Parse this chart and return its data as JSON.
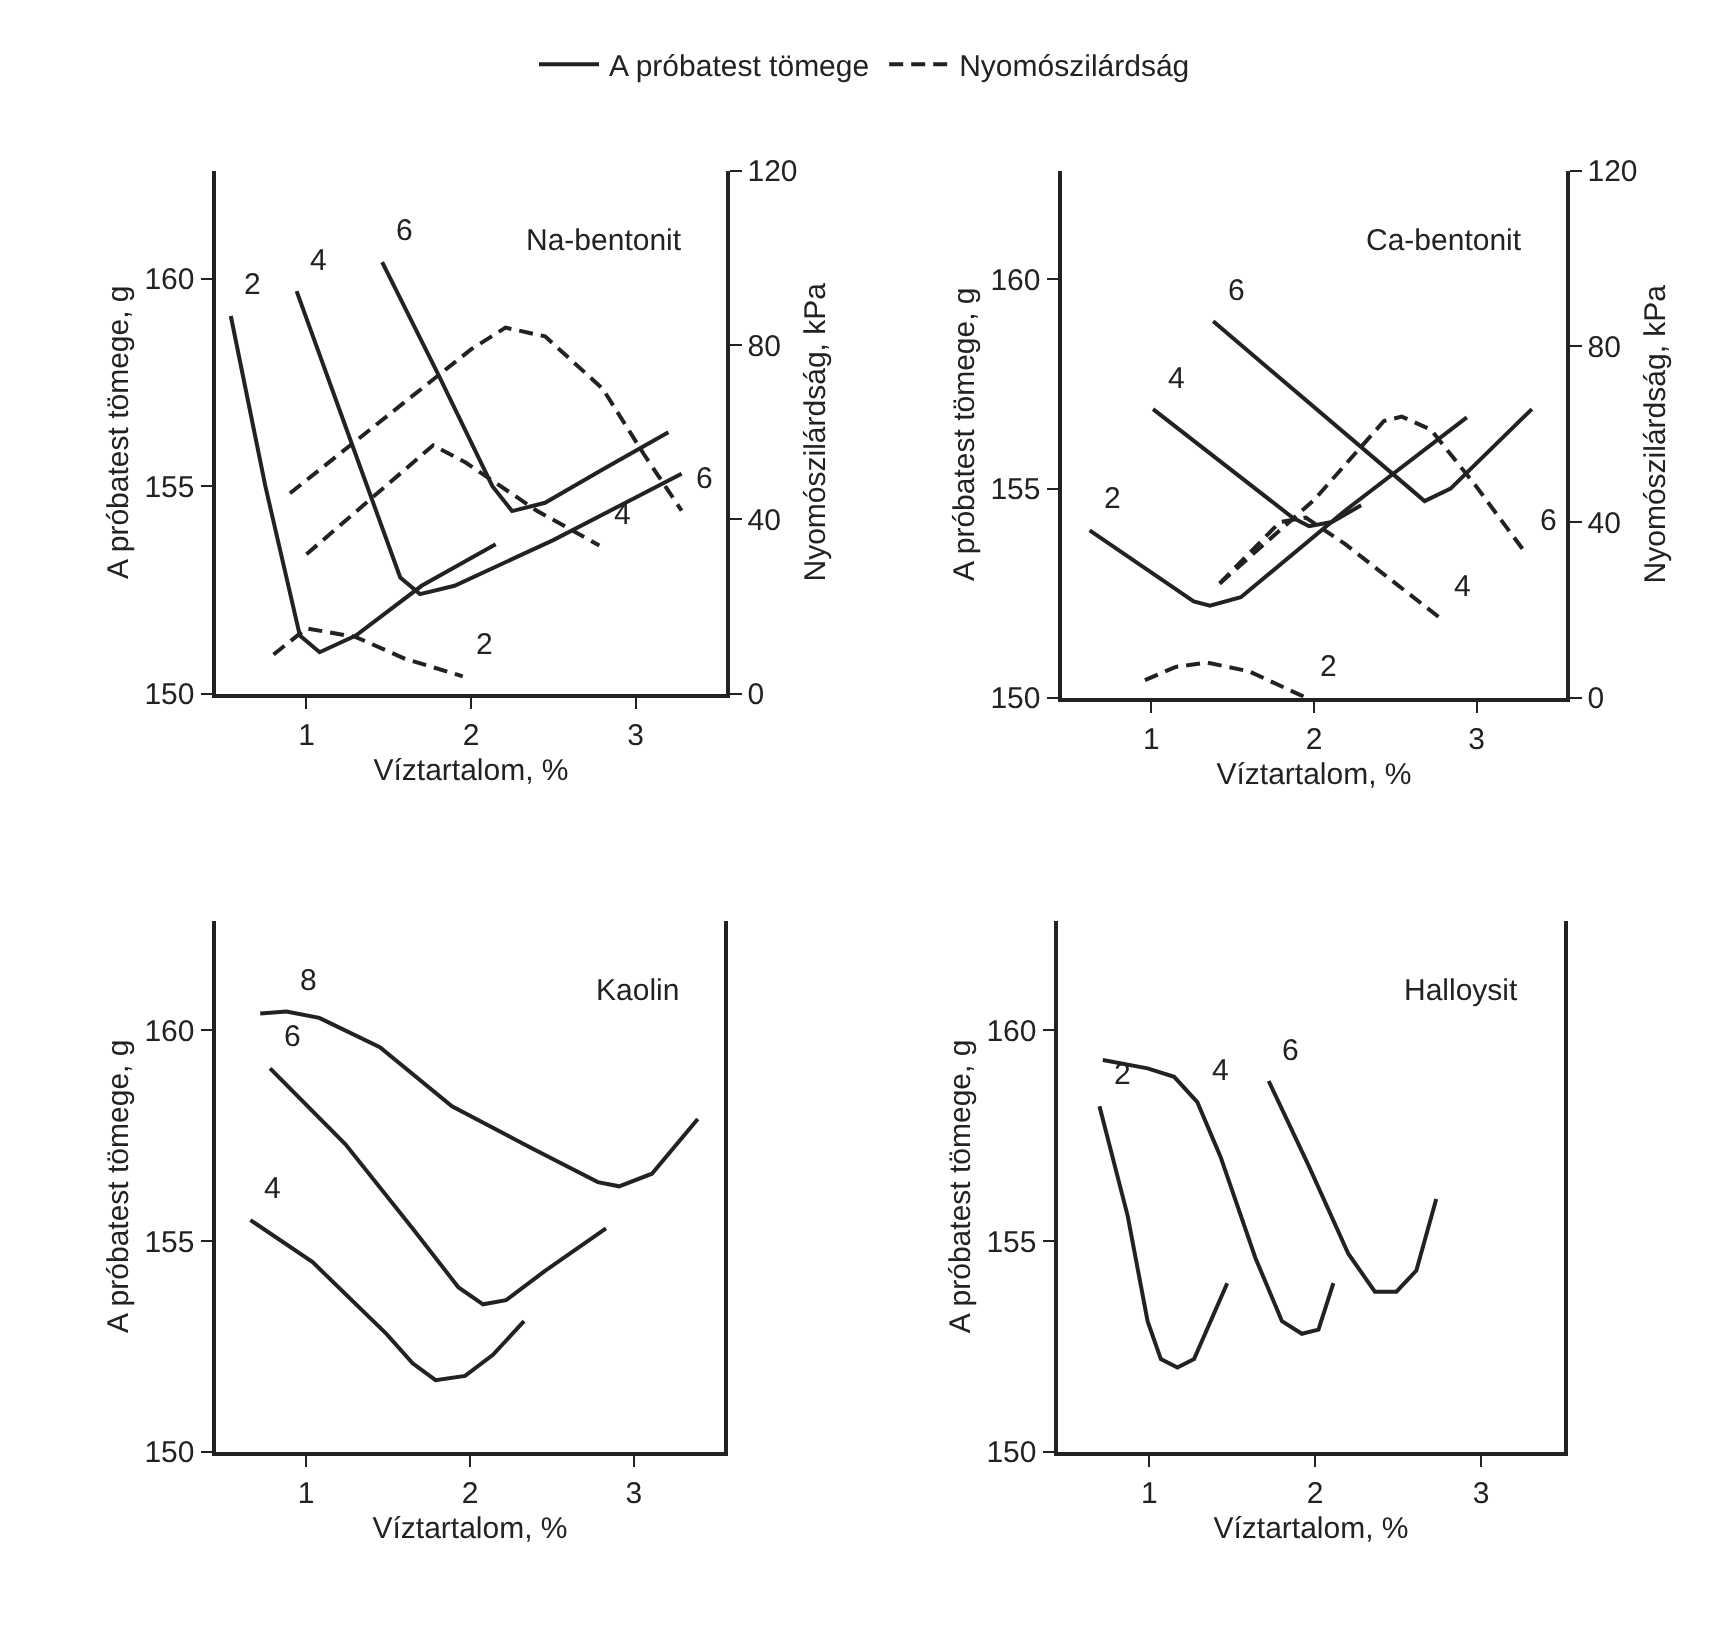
{
  "chart_data": [
    {
      "type": "line",
      "title": "Na-bentonit",
      "xlabel": "Víztartalom, %",
      "ylabel": "A próbatest tömege, g",
      "y2label": "Nyomószilárdság, kPa",
      "legend": "top",
      "xlim": [
        0.45,
        3.55
      ],
      "xticks": [
        1,
        2,
        3
      ],
      "ylim": [
        150,
        162.6
      ],
      "yticks": [
        150,
        155,
        160
      ],
      "y2lim": [
        0,
        120
      ],
      "y2ticks": [
        0,
        40,
        80,
        120
      ],
      "series": [
        {
          "name": "A próbatest tömege",
          "color": "#222222",
          "line_style": "solid",
          "x": [
            0.54,
            0.75,
            0.96,
            1.08,
            1.3,
            1.7,
            2.15
          ],
          "values": [
            159.1,
            155.0,
            151.4,
            151.0,
            151.4,
            152.6,
            153.6
          ]
        },
        {
          "color": "#222222",
          "line_style": "solid",
          "x": [
            0.94,
            1.25,
            1.57,
            1.69,
            1.9,
            2.5,
            3.28
          ],
          "values": [
            159.7,
            156.3,
            152.8,
            152.4,
            152.6,
            153.7,
            155.3
          ]
        },
        {
          "color": "#222222",
          "line_style": "solid",
          "x": [
            1.46,
            1.8,
            2.13,
            2.25,
            2.45,
            2.8,
            3.2
          ],
          "values": [
            160.4,
            157.7,
            155.0,
            154.4,
            154.6,
            155.4,
            156.3
          ]
        },
        {
          "name": "Nyomószilárdság",
          "color": "#222222",
          "line_style": "dashed",
          "axis": "y2",
          "x": [
            0.8,
            1.0,
            1.3,
            1.6,
            1.95
          ],
          "values": [
            9,
            15,
            13,
            8,
            4
          ]
        },
        {
          "color": "#222222",
          "line_style": "dashed",
          "axis": "y2",
          "x": [
            1.0,
            1.4,
            1.77,
            1.97,
            2.4,
            2.78
          ],
          "values": [
            32,
            45,
            57,
            53,
            42,
            34
          ]
        },
        {
          "color": "#222222",
          "line_style": "dashed",
          "axis": "y2",
          "x": [
            0.9,
            1.5,
            2.0,
            2.21,
            2.45,
            2.8,
            3.05,
            3.28
          ],
          "values": [
            46,
            64,
            79,
            84,
            82,
            70,
            55,
            42
          ]
        }
      ],
      "annotations": [
        {
          "text": "2",
          "x": 0.54,
          "y": 159.1
        },
        {
          "text": "4",
          "x": 0.94,
          "y": 159.7
        },
        {
          "text": "6",
          "x": 1.46,
          "y": 160.4
        },
        {
          "text": "2",
          "x": 1.95,
          "y": 150.42
        },
        {
          "text": "4",
          "x": 2.78,
          "y": 153.57
        },
        {
          "text": "6",
          "x": 3.28,
          "y": 154.41
        }
      ]
    },
    {
      "type": "line",
      "title": "Ca-bentonit",
      "xlabel": "Víztartalom, %",
      "ylabel": "A próbatest tömege, g",
      "y2label": "Nyomószilárdság, kPa",
      "xlim": [
        0.45,
        3.55
      ],
      "xticks": [
        1,
        2,
        3
      ],
      "ylim": [
        150,
        162.6
      ],
      "yticks": [
        150,
        155,
        160
      ],
      "y2lim": [
        0,
        120
      ],
      "y2ticks": [
        0,
        40,
        80,
        120
      ],
      "series": [
        {
          "color": "#222222",
          "line_style": "solid",
          "x": [
            0.62,
            1.26,
            1.36,
            1.55,
            2.2,
            2.94
          ],
          "values": [
            154.0,
            152.3,
            152.2,
            152.4,
            154.5,
            156.7
          ]
        },
        {
          "color": "#222222",
          "line_style": "solid",
          "x": [
            1.01,
            1.87,
            1.97,
            2.11,
            2.29
          ],
          "values": [
            156.9,
            154.3,
            154.1,
            154.2,
            154.6
          ]
        },
        {
          "color": "#222222",
          "line_style": "solid",
          "x": [
            1.38,
            2.56,
            2.68,
            2.84,
            3.34
          ],
          "values": [
            159.0,
            155.1,
            154.7,
            155.0,
            156.9
          ]
        },
        {
          "color": "#222222",
          "line_style": "dashed",
          "axis": "y2",
          "x": [
            0.96,
            1.15,
            1.34,
            1.6,
            1.95
          ],
          "values": [
            4,
            7,
            8,
            6,
            0
          ]
        },
        {
          "color": "#222222",
          "line_style": "dashed",
          "axis": "y2",
          "x": [
            1.42,
            1.79,
            1.95,
            2.19,
            2.78
          ],
          "values": [
            26,
            40,
            41,
            35,
            18
          ]
        },
        {
          "color": "#222222",
          "line_style": "dashed",
          "axis": "y2",
          "x": [
            1.42,
            2.0,
            2.43,
            2.54,
            2.72,
            3.0,
            3.3
          ],
          "values": [
            26,
            45,
            63,
            64,
            61,
            48,
            33
          ]
        }
      ],
      "annotations": [
        {
          "text": "2",
          "x": 0.62,
          "y": 154.0
        },
        {
          "text": "4",
          "x": 1.01,
          "y": 156.9
        },
        {
          "text": "6",
          "x": 1.38,
          "y": 159.0
        },
        {
          "text": "2",
          "x": 1.95,
          "y": 150.0
        },
        {
          "text": "4",
          "x": 2.78,
          "y": 151.89
        },
        {
          "text": "6",
          "x": 3.3,
          "y": 153.47
        }
      ]
    },
    {
      "type": "line",
      "title": "Kaolin",
      "xlabel": "Víztartalom, %",
      "ylabel": "A próbatest tömege, g",
      "xlim": [
        0.45,
        3.55
      ],
      "xticks": [
        1,
        2,
        3
      ],
      "ylim": [
        150,
        162.6
      ],
      "yticks": [
        150,
        155,
        160
      ],
      "series": [
        {
          "color": "#222222",
          "line_style": "solid",
          "x": [
            0.72,
            0.88,
            1.08,
            1.45,
            1.89,
            2.38,
            2.78,
            2.91,
            3.11,
            3.39
          ],
          "values": [
            160.4,
            160.45,
            160.3,
            159.6,
            158.2,
            157.2,
            156.4,
            156.3,
            156.6,
            157.9
          ]
        },
        {
          "color": "#222222",
          "line_style": "solid",
          "x": [
            0.78,
            1.24,
            1.65,
            1.93,
            2.08,
            2.22,
            2.46,
            2.83
          ],
          "values": [
            159.1,
            157.3,
            155.3,
            153.9,
            153.5,
            153.6,
            154.3,
            155.3
          ]
        },
        {
          "color": "#222222",
          "line_style": "solid",
          "x": [
            0.66,
            1.04,
            1.49,
            1.65,
            1.79,
            1.97,
            2.14,
            2.33
          ],
          "values": [
            155.5,
            154.5,
            152.8,
            152.1,
            151.7,
            151.8,
            152.3,
            153.1
          ]
        }
      ],
      "annotations": [
        {
          "text": "8",
          "x": 0.88,
          "y": 160.45
        },
        {
          "text": "6",
          "x": 0.78,
          "y": 159.1
        },
        {
          "text": "4",
          "x": 0.66,
          "y": 155.5
        }
      ]
    },
    {
      "type": "line",
      "title": "Halloysit",
      "xlabel": "Víztartalom, %",
      "ylabel": "A próbatest tömege, g",
      "xlim": [
        0.45,
        3.5
      ],
      "xticks": [
        1,
        2,
        3
      ],
      "ylim": [
        150,
        162.6
      ],
      "yticks": [
        150,
        155,
        160
      ],
      "series": [
        {
          "color": "#222222",
          "line_style": "solid",
          "x": [
            0.7,
            0.87,
            0.99,
            1.07,
            1.17,
            1.27,
            1.47
          ],
          "values": [
            158.2,
            155.6,
            153.1,
            152.2,
            152.0,
            152.2,
            154.0
          ]
        },
        {
          "color": "#222222",
          "line_style": "solid",
          "x": [
            0.72,
            0.99,
            1.15,
            1.29,
            1.43,
            1.64,
            1.8,
            1.92,
            2.02,
            2.11
          ],
          "values": [
            159.3,
            159.1,
            158.9,
            158.3,
            157.0,
            154.6,
            153.1,
            152.8,
            152.9,
            154.0
          ]
        },
        {
          "color": "#222222",
          "line_style": "solid",
          "x": [
            1.72,
            1.96,
            2.2,
            2.36,
            2.49,
            2.61,
            2.73
          ],
          "values": [
            158.8,
            156.8,
            154.7,
            153.8,
            153.8,
            154.3,
            156.0
          ]
        }
      ],
      "annotations": [
        {
          "text": "2",
          "x": 0.7,
          "y": 158.2
        },
        {
          "text": "4",
          "x": 1.29,
          "y": 158.3
        },
        {
          "text": "6",
          "x": 1.72,
          "y": 158.8
        }
      ]
    }
  ]
}
